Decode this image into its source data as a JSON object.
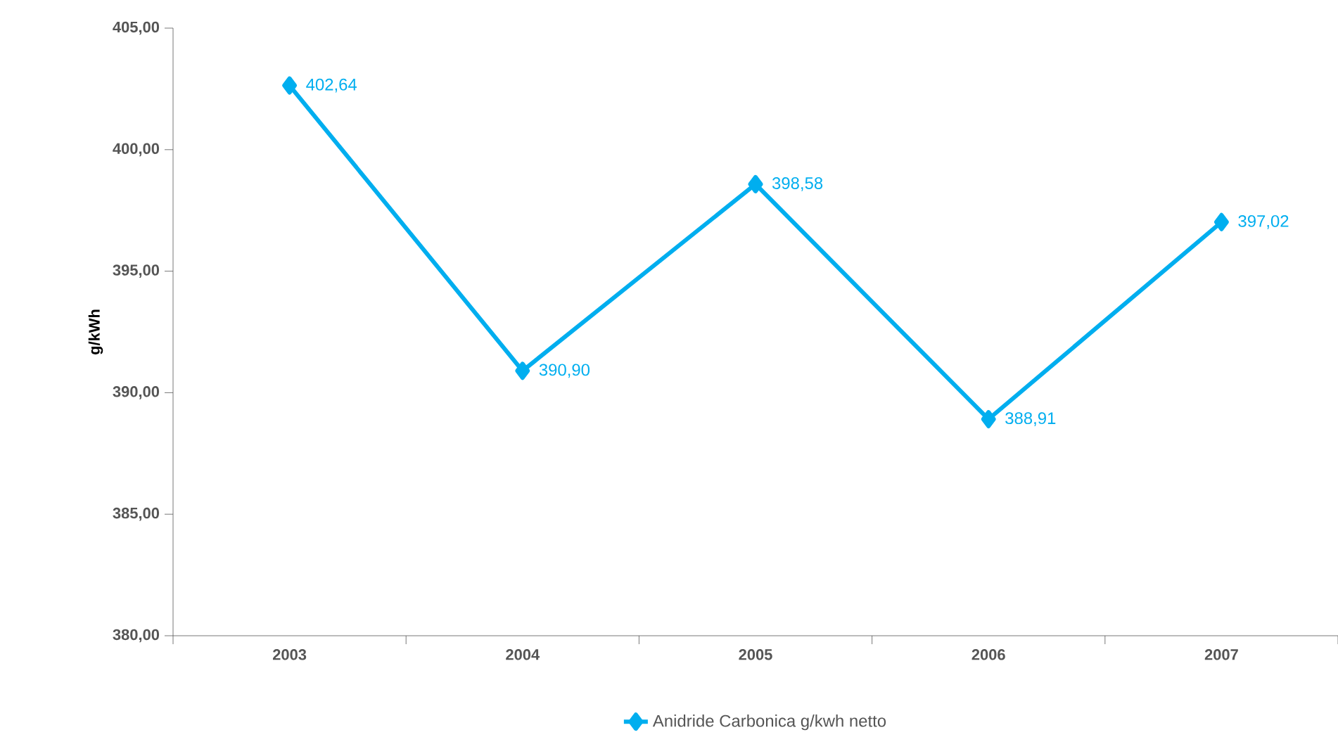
{
  "chart_data": {
    "type": "line",
    "ylabel": "g/kWh",
    "categories": [
      "2003",
      "2004",
      "2005",
      "2006",
      "2007"
    ],
    "series": [
      {
        "name": "Anidride Carbonica g/kwh netto",
        "color": "#00aeef",
        "values": [
          402.64,
          390.9,
          398.58,
          388.91,
          397.02
        ],
        "value_labels": [
          "402,64",
          "390,90",
          "398,58",
          "388,91",
          "397,02"
        ]
      }
    ],
    "ylim": [
      380,
      405
    ],
    "yticks": [
      {
        "value": 380,
        "label": "380,00"
      },
      {
        "value": 385,
        "label": "385,00"
      },
      {
        "value": 390,
        "label": "390,00"
      },
      {
        "value": 395,
        "label": "395,00"
      },
      {
        "value": 400,
        "label": "400,00"
      },
      {
        "value": 405,
        "label": "405,00"
      }
    ],
    "grid": false,
    "legend": "bottom",
    "marker": "diamond",
    "line_style": "solid"
  }
}
